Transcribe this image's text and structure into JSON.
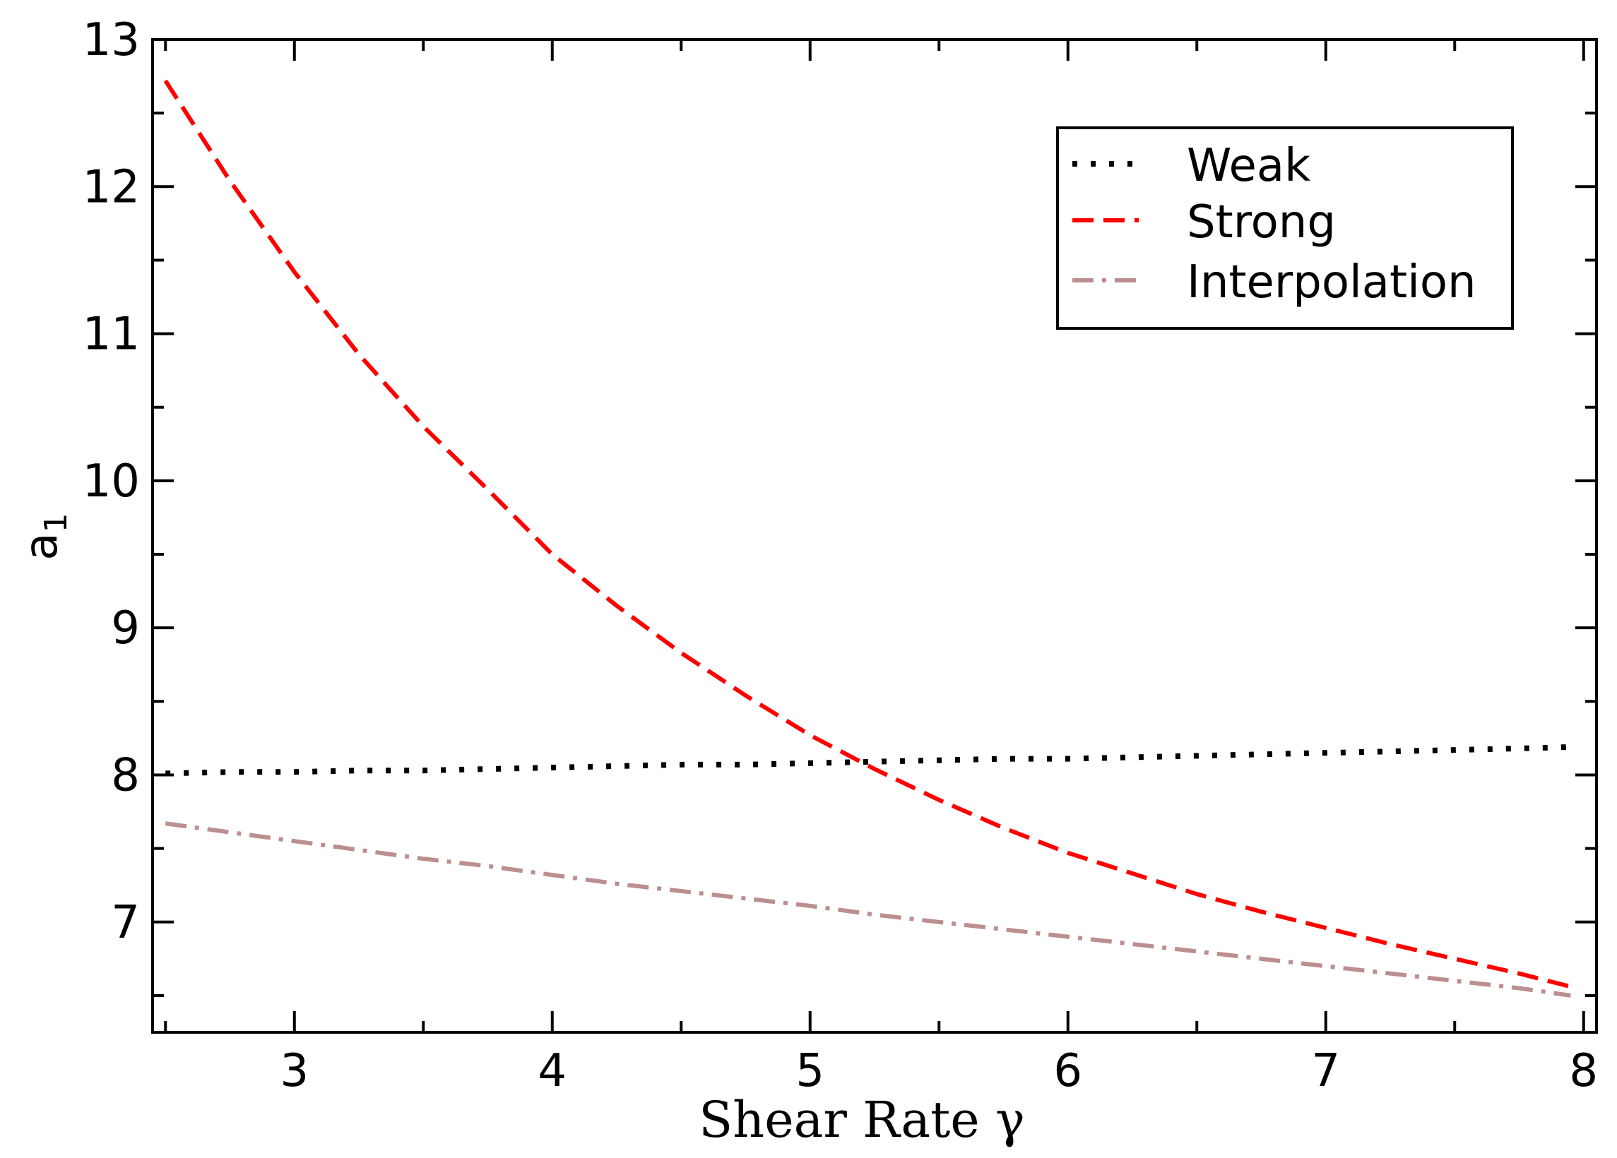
{
  "chart_data": {
    "type": "line",
    "title": "",
    "xlabel": "Shear Rate γ",
    "ylabel": "a",
    "ylabel_subscript": "1",
    "xlim": [
      2.45,
      8.05
    ],
    "ylim": [
      6.25,
      13.0
    ],
    "x_ticks": [
      3,
      4,
      5,
      6,
      7,
      8
    ],
    "x_tick_labels": [
      "3",
      "4",
      "5",
      "6",
      "7",
      "8"
    ],
    "x_minor_ticks": [
      2.5,
      3.5,
      4.5,
      5.5,
      6.5,
      7.5
    ],
    "y_ticks": [
      7,
      8,
      9,
      10,
      11,
      12,
      13
    ],
    "y_tick_labels": [
      "7",
      "8",
      "9",
      "10",
      "11",
      "12",
      "13"
    ],
    "y_minor_ticks": [
      6.5,
      7.5,
      8.5,
      9.5,
      10.5,
      11.5,
      12.5
    ],
    "grid": false,
    "legend_position": "top-right",
    "x": [
      2.5,
      2.75,
      3.0,
      3.25,
      3.5,
      3.75,
      4.0,
      4.25,
      4.5,
      4.75,
      5.0,
      5.25,
      5.5,
      5.75,
      6.0,
      6.25,
      6.5,
      6.75,
      7.0,
      7.25,
      7.5,
      7.75,
      7.95
    ],
    "series": [
      {
        "name": "Weak",
        "color": "#000000",
        "style": "dotted",
        "values": [
          8.01,
          8.02,
          8.02,
          8.03,
          8.03,
          8.04,
          8.05,
          8.06,
          8.07,
          8.07,
          8.08,
          8.09,
          8.1,
          8.11,
          8.11,
          8.12,
          8.13,
          8.14,
          8.15,
          8.16,
          8.17,
          8.18,
          8.19
        ]
      },
      {
        "name": "Strong",
        "color": "#ff0000",
        "style": "dashed",
        "values": [
          12.72,
          12.04,
          11.42,
          10.86,
          10.37,
          9.94,
          9.5,
          9.15,
          8.83,
          8.54,
          8.27,
          8.04,
          7.83,
          7.64,
          7.47,
          7.33,
          7.19,
          7.07,
          6.96,
          6.85,
          6.75,
          6.65,
          6.56
        ]
      },
      {
        "name": "Interpolation",
        "color": "#bc8f8f",
        "style": "dash-dot",
        "values": [
          7.67,
          7.61,
          7.55,
          7.49,
          7.43,
          7.38,
          7.32,
          7.26,
          7.21,
          7.16,
          7.11,
          7.05,
          7.0,
          6.95,
          6.9,
          6.85,
          6.8,
          6.75,
          6.7,
          6.65,
          6.6,
          6.55,
          6.5
        ]
      }
    ]
  }
}
